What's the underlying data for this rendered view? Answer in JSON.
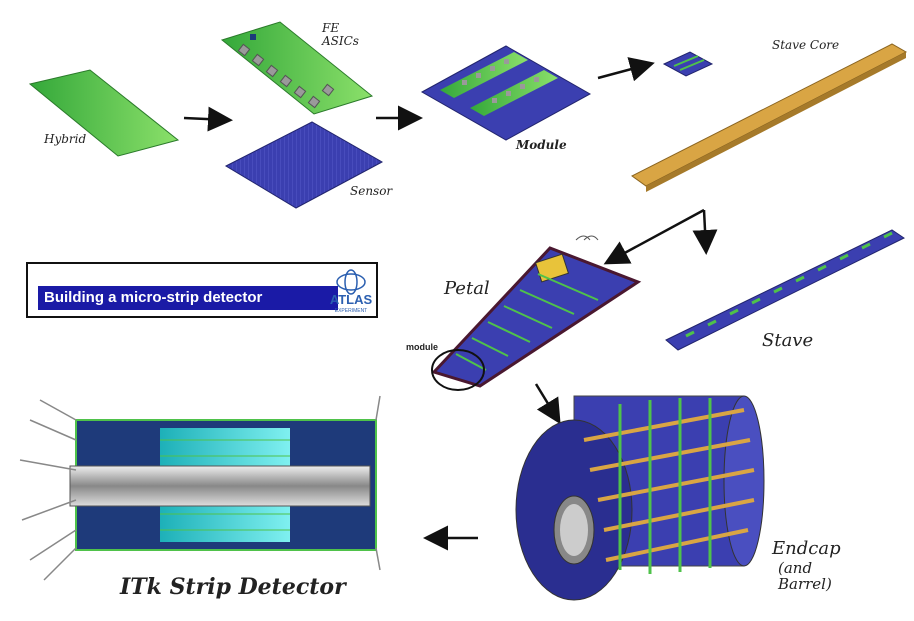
{
  "labels": {
    "hybrid": "Hybrid",
    "fe_asics": "FE\nASICs",
    "sensor": "Sensor",
    "module": "Module",
    "stave_core": "Stave Core",
    "petal": "Petal",
    "module_small": "module",
    "stave": "Stave",
    "endcap": "Endcap",
    "and_barrel": "(and\nBarrel)",
    "itk": "ITk Strip Detector"
  },
  "banner": {
    "title": "Building a micro-strip detector",
    "logo_text": "ATLAS",
    "logo_sub": "EXPERIMENT"
  },
  "colors": {
    "green": "#4fc24a",
    "sensor_blue": "#3b3fb0",
    "stave_core": "#d9a544",
    "banner_blue": "#1a1aa6",
    "cyan": "#2fcfcf"
  }
}
